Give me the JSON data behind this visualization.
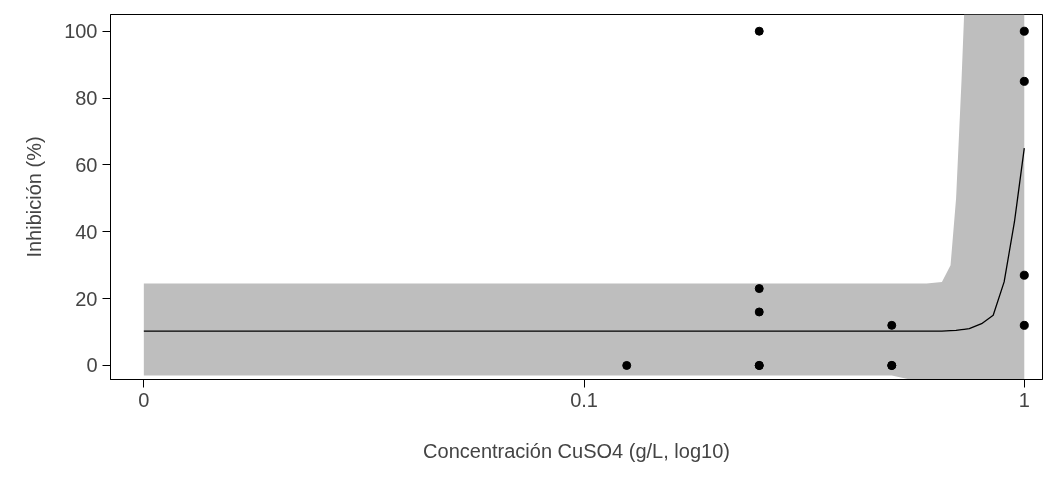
{
  "chart_data": {
    "type": "scatter",
    "xlabel": "Concentración CuSO4 (g/L, log10)",
    "ylabel": "Inhibición (%)",
    "log": "x",
    "xlim": [
      0.0084,
      1.1
    ],
    "ylim": [
      -4.2,
      105
    ],
    "xticks": [
      {
        "value": 0.01,
        "label": "0"
      },
      0.1,
      1
    ],
    "yticks": [
      0,
      20,
      40,
      60,
      80,
      100
    ],
    "grid": false,
    "marker": "circle",
    "series": [
      {
        "type": "line",
        "color": "#000000",
        "line_style": "solid",
        "marker": "none",
        "x": [
          0.01,
          0.1,
          0.3,
          0.5,
          0.55,
          0.6,
          0.65,
          0.68,
          0.7,
          0.72,
          0.73,
          0.75,
          0.8,
          0.85,
          0.9,
          0.95,
          1
        ],
        "values": [
          10.3,
          10.3,
          10.3,
          10.3,
          10.3,
          10.3,
          10.3,
          10.4,
          10.5,
          10.7,
          10.8,
          11,
          12.5,
          15,
          25,
          43,
          65
        ],
        "lower": [
          -3,
          -3,
          -3,
          -3,
          -4.2,
          -4.2,
          -4.2,
          -4.2,
          -4.2,
          -4.2,
          -4.2,
          -4.2,
          -4.2,
          -4.2,
          -4.2,
          -4.2,
          -4.2
        ],
        "upper": [
          24.5,
          24.5,
          24.5,
          24.5,
          24.5,
          24.5,
          25,
          30,
          50,
          85,
          105,
          105,
          105,
          105,
          105,
          105,
          105
        ]
      },
      {
        "color": "#000000",
        "x": [
          0.125,
          0.25,
          0.25,
          0.25,
          0.25,
          0.25,
          0.5,
          0.5,
          0.5,
          1,
          1,
          1,
          1
        ],
        "values": [
          0,
          100,
          23,
          16,
          0,
          0,
          12,
          0,
          0,
          100,
          85,
          27,
          12
        ]
      }
    ]
  }
}
